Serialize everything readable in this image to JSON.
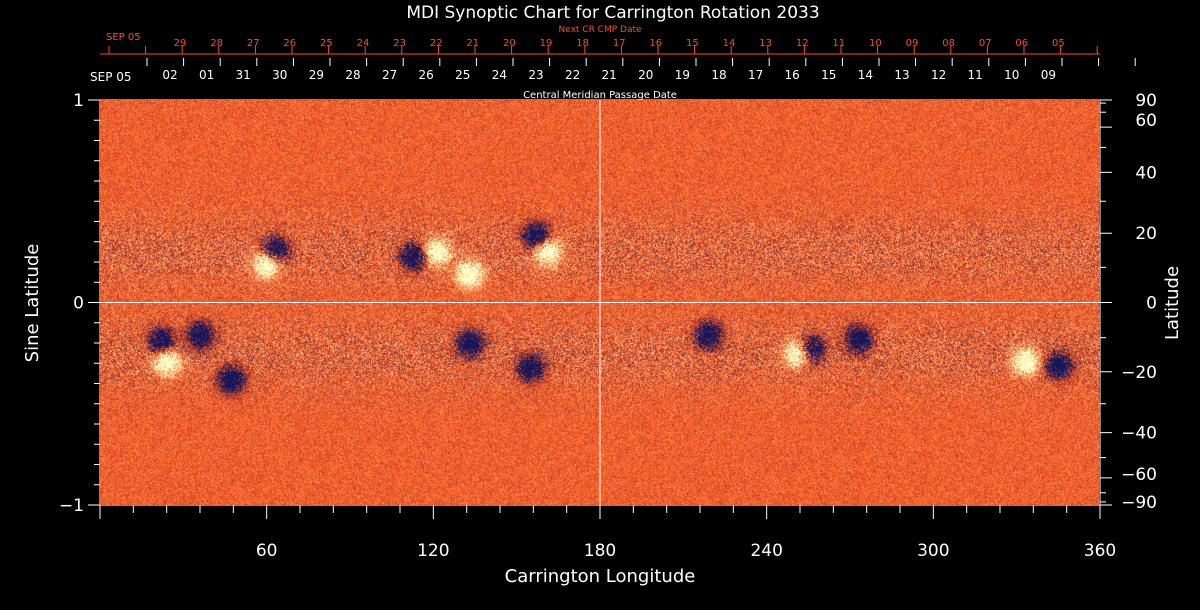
{
  "chart_data": {
    "type": "heatmap",
    "title": "MDI Synoptic Chart for Carrington Rotation 2033",
    "xlabel": "Carrington Longitude",
    "ylabel_left": "Sine Latitude",
    "ylabel_right": "Latitude",
    "xlim": [
      0,
      360
    ],
    "ylim": [
      -1,
      1
    ],
    "x_ticks": [
      "60",
      "120",
      "180",
      "240",
      "300",
      "360"
    ],
    "x_tick_values": [
      60,
      120,
      180,
      240,
      300,
      360
    ],
    "y_left_ticks": [
      "1",
      "0",
      "−1"
    ],
    "y_left_tick_values": [
      1,
      0,
      -1
    ],
    "y_right_ticks": [
      "90",
      "60",
      "40",
      "20",
      "0",
      "−20",
      "−40",
      "−60",
      "−90"
    ],
    "y_right_tick_values": [
      90,
      60,
      40,
      20,
      0,
      -20,
      -40,
      -60,
      -90
    ],
    "top_axis_next_label": "Next CR CMP Date",
    "top_axis_next_start": "SEP 05",
    "top_axis_next_dates": [
      "29",
      "28",
      "27",
      "26",
      "25",
      "24",
      "23",
      "22",
      "21",
      "20",
      "19",
      "18",
      "17",
      "16",
      "15",
      "14",
      "13",
      "12",
      "11",
      "10",
      "09",
      "08",
      "07",
      "06",
      "05"
    ],
    "top_axis_cmp_label": "Central Meridian Passage Date",
    "top_axis_cmp_start": "SEP 05",
    "top_axis_cmp_dates": [
      "02",
      "01",
      "31",
      "30",
      "29",
      "28",
      "27",
      "26",
      "25",
      "24",
      "23",
      "22",
      "21",
      "20",
      "19",
      "18",
      "17",
      "16",
      "15",
      "14",
      "13",
      "12",
      "11",
      "10",
      "09"
    ],
    "crosshair": {
      "longitude": 180,
      "sine_latitude": 0
    },
    "active_regions": [
      {
        "lon": 60,
        "sinlat": 0.19,
        "polarity": "positive"
      },
      {
        "lon": 63,
        "sinlat": 0.26,
        "polarity": "negative"
      },
      {
        "lon": 113,
        "sinlat": 0.23,
        "polarity": "negative"
      },
      {
        "lon": 121,
        "sinlat": 0.25,
        "polarity": "positive"
      },
      {
        "lon": 133,
        "sinlat": 0.14,
        "polarity": "positive"
      },
      {
        "lon": 157,
        "sinlat": 0.33,
        "polarity": "negative"
      },
      {
        "lon": 161,
        "sinlat": 0.25,
        "polarity": "positive"
      },
      {
        "lon": 22,
        "sinlat": -0.19,
        "polarity": "negative"
      },
      {
        "lon": 24,
        "sinlat": -0.29,
        "polarity": "positive"
      },
      {
        "lon": 36,
        "sinlat": -0.16,
        "polarity": "negative"
      },
      {
        "lon": 47,
        "sinlat": -0.38,
        "polarity": "negative"
      },
      {
        "lon": 133,
        "sinlat": -0.2,
        "polarity": "negative"
      },
      {
        "lon": 155,
        "sinlat": -0.32,
        "polarity": "negative"
      },
      {
        "lon": 219,
        "sinlat": -0.16,
        "polarity": "negative"
      },
      {
        "lon": 251,
        "sinlat": -0.25,
        "polarity": "positive"
      },
      {
        "lon": 256,
        "sinlat": -0.23,
        "polarity": "negative"
      },
      {
        "lon": 273,
        "sinlat": -0.18,
        "polarity": "negative"
      },
      {
        "lon": 333,
        "sinlat": -0.29,
        "polarity": "positive"
      },
      {
        "lon": 345,
        "sinlat": -0.31,
        "polarity": "negative"
      }
    ],
    "colors": {
      "background": "#000000",
      "field_base": "#ff5a1f",
      "positive": "#ffffc8",
      "negative": "#15155a",
      "axis_white": "#ffffff",
      "axis_orange": "#ff4d1a"
    }
  }
}
